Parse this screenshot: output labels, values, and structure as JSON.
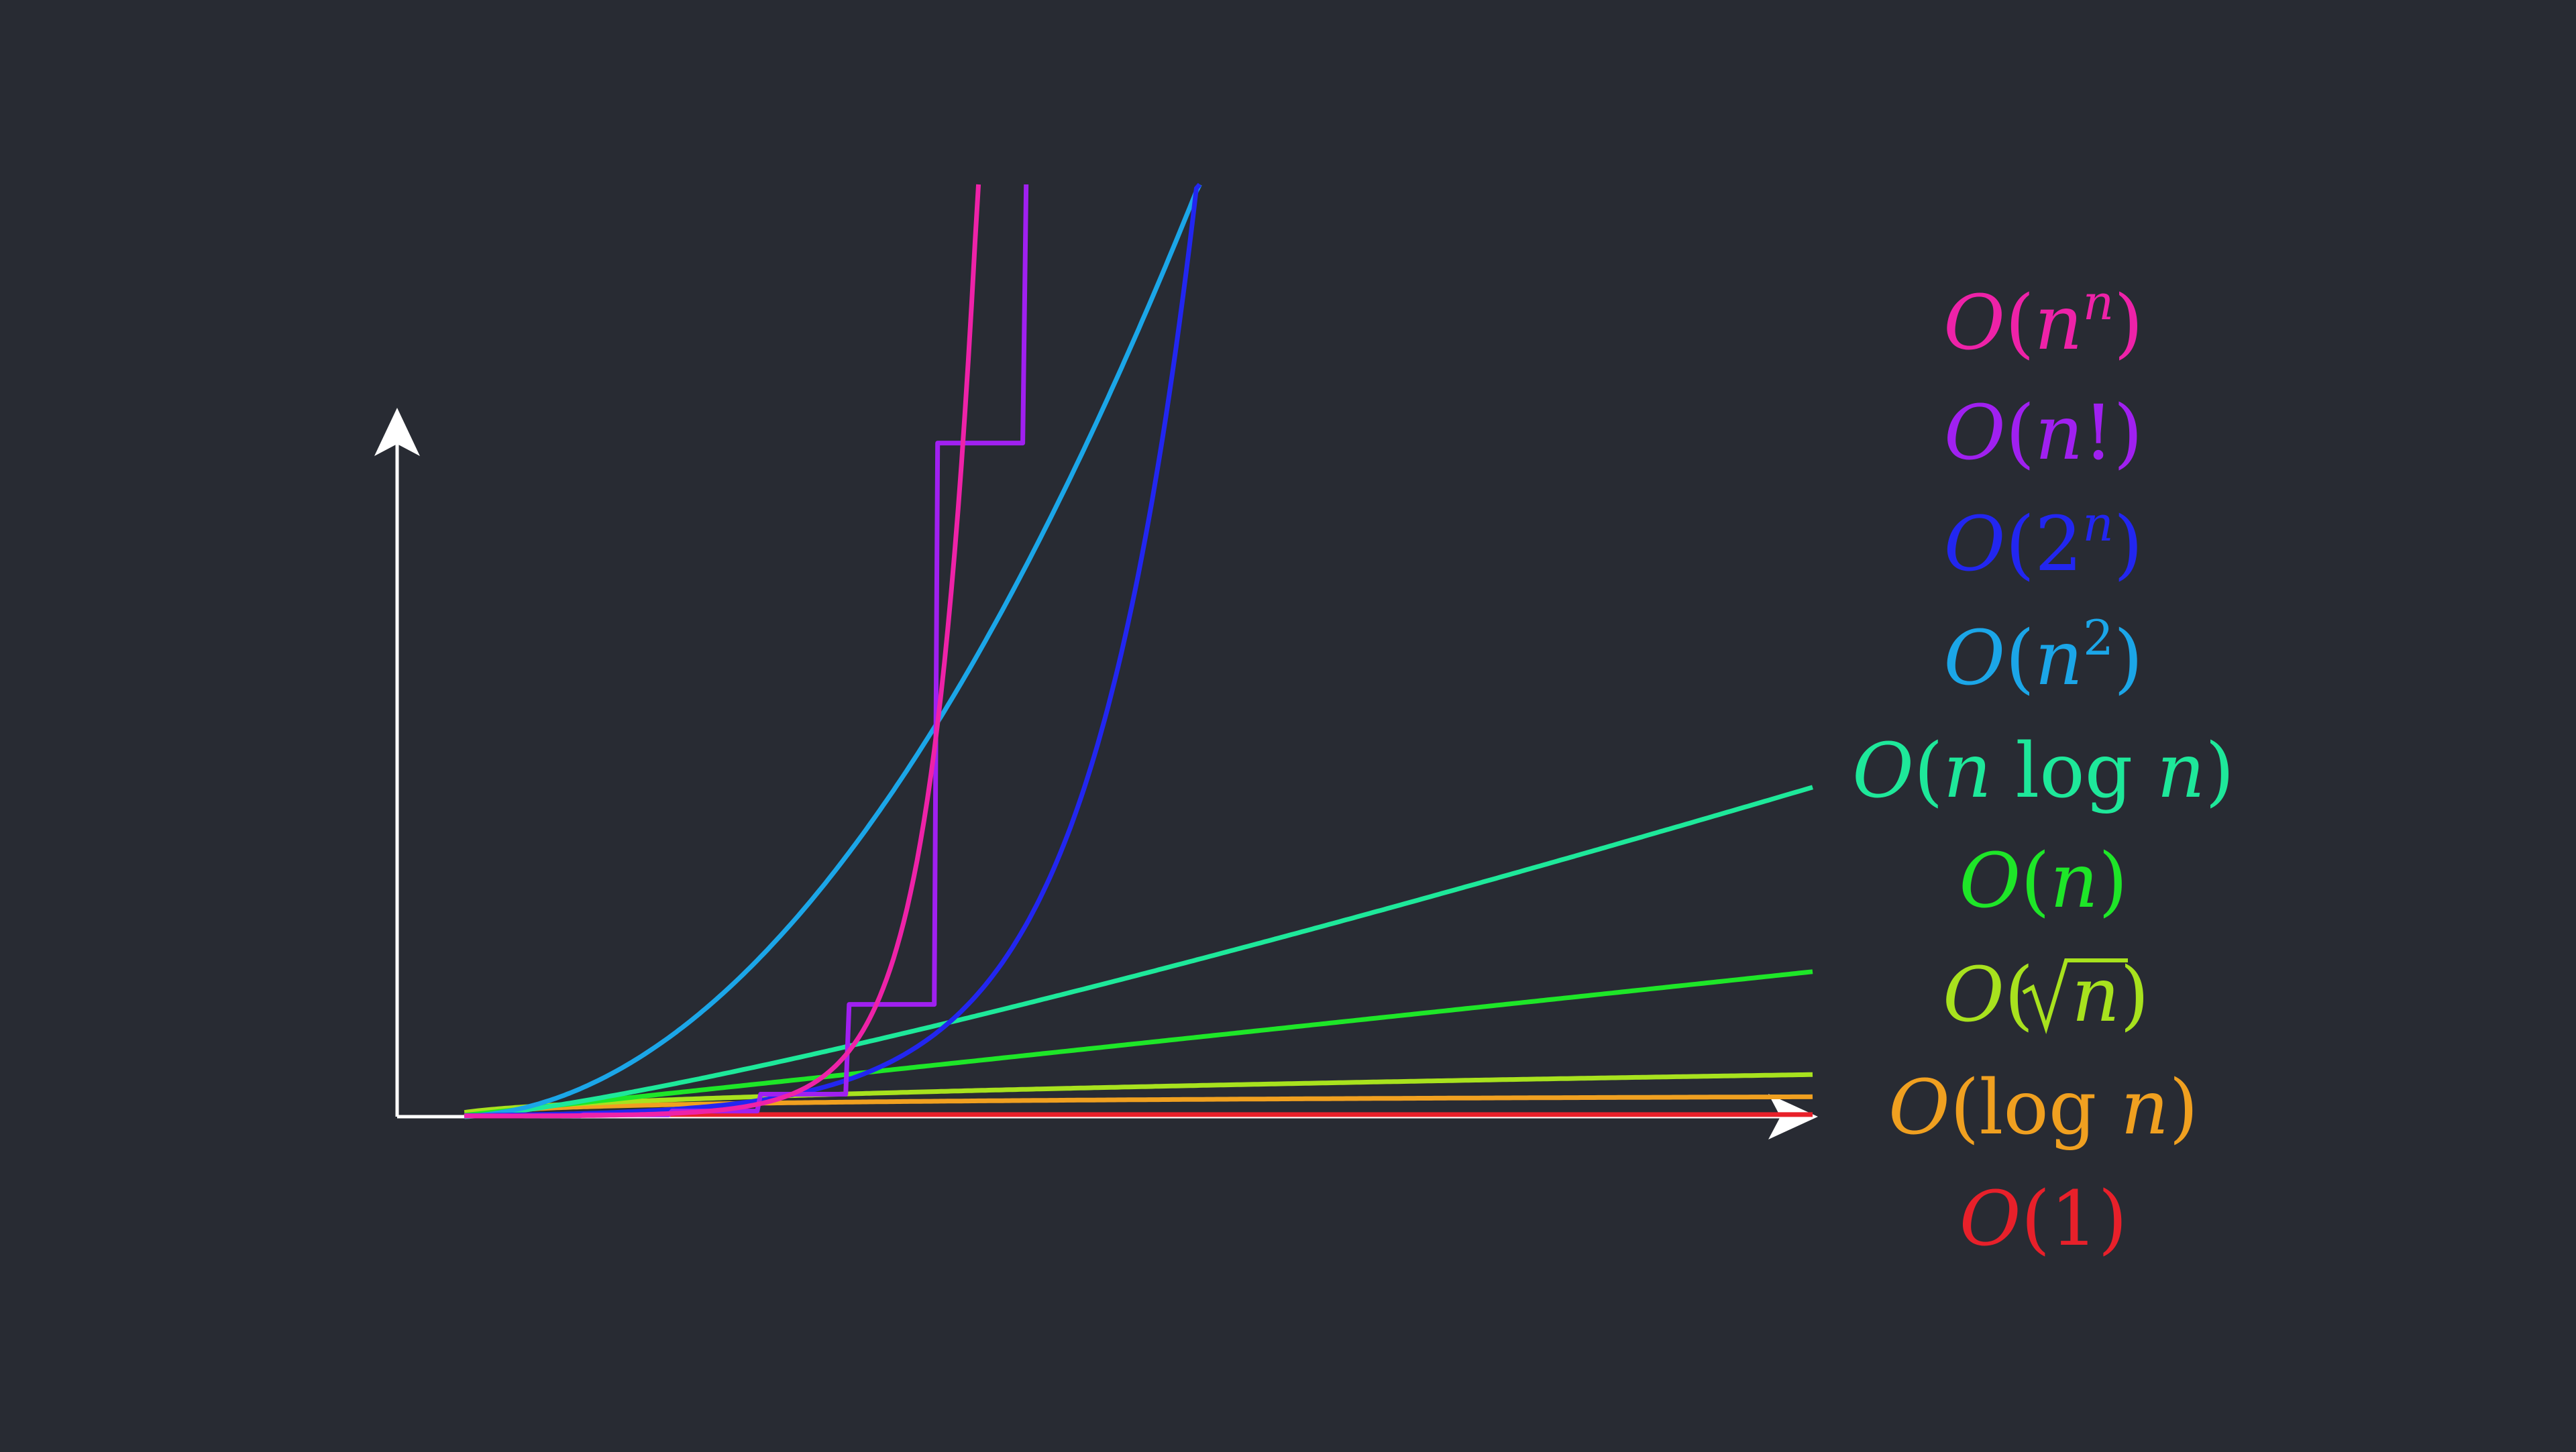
{
  "chart_data": {
    "type": "line",
    "title": "",
    "xlabel": "",
    "ylabel": "",
    "axes": {
      "show_ticks": false,
      "arrows": true,
      "grid": false,
      "axis_color": "#ffffff"
    },
    "background": "#282b33",
    "legend_placement": "right",
    "x": [
      1,
      2,
      3,
      4,
      5,
      6,
      7,
      8,
      9,
      10,
      11,
      12,
      13,
      14,
      15,
      16,
      17,
      18,
      19,
      20,
      21,
      22,
      23,
      24,
      25,
      26,
      27,
      28,
      29,
      30,
      31,
      32,
      33,
      34,
      35,
      36,
      37,
      38,
      39,
      40,
      41,
      42,
      43,
      44,
      45,
      46,
      47,
      48,
      49,
      50,
      51,
      52,
      53,
      54,
      55,
      56,
      57,
      58,
      59,
      60,
      61,
      62,
      63,
      64,
      65,
      66,
      67,
      68,
      69,
      70,
      71,
      72,
      73,
      74,
      75,
      76,
      77,
      78,
      79,
      80,
      81,
      82,
      83,
      84,
      85,
      86,
      87,
      88,
      89,
      90,
      91,
      92,
      93,
      94,
      95,
      96,
      97,
      98,
      99,
      100
    ],
    "xlim": [
      0,
      100
    ],
    "ylim": [
      0,
      1000
    ],
    "series": [
      {
        "name": "O(1)",
        "color": "#e8202a",
        "expr": "1"
      },
      {
        "name": "O(log n)",
        "color": "#f0a020",
        "expr": "log n"
      },
      {
        "name": "O(√n)",
        "color": "#a8e21e",
        "expr": "sqrt n"
      },
      {
        "name": "O(n)",
        "color": "#1ee628",
        "expr": "n"
      },
      {
        "name": "O(n log n)",
        "color": "#1ee89a",
        "expr": "n log n"
      },
      {
        "name": "O(n²)",
        "color": "#1ba6e8",
        "expr": "n^2"
      },
      {
        "name": "O(2ⁿ)",
        "color": "#2226f0",
        "expr": "2^n"
      },
      {
        "name": "O(n!)",
        "color": "#a020f0",
        "expr": "n!"
      },
      {
        "name": "O(nⁿ)",
        "color": "#ee22a8",
        "expr": "n^n"
      }
    ]
  },
  "labels": [
    {
      "key": "nn",
      "color": "#ee22a8"
    },
    {
      "key": "nfact",
      "color": "#a020f0"
    },
    {
      "key": "exp2",
      "color": "#2226f0"
    },
    {
      "key": "nsq",
      "color": "#1ba6e8"
    },
    {
      "key": "nlogn",
      "color": "#1ee89a"
    },
    {
      "key": "n",
      "color": "#1ee628"
    },
    {
      "key": "sqrtn",
      "color": "#a8e21e"
    },
    {
      "key": "logn",
      "color": "#f0a020"
    },
    {
      "key": "one",
      "color": "#e8202a"
    }
  ]
}
